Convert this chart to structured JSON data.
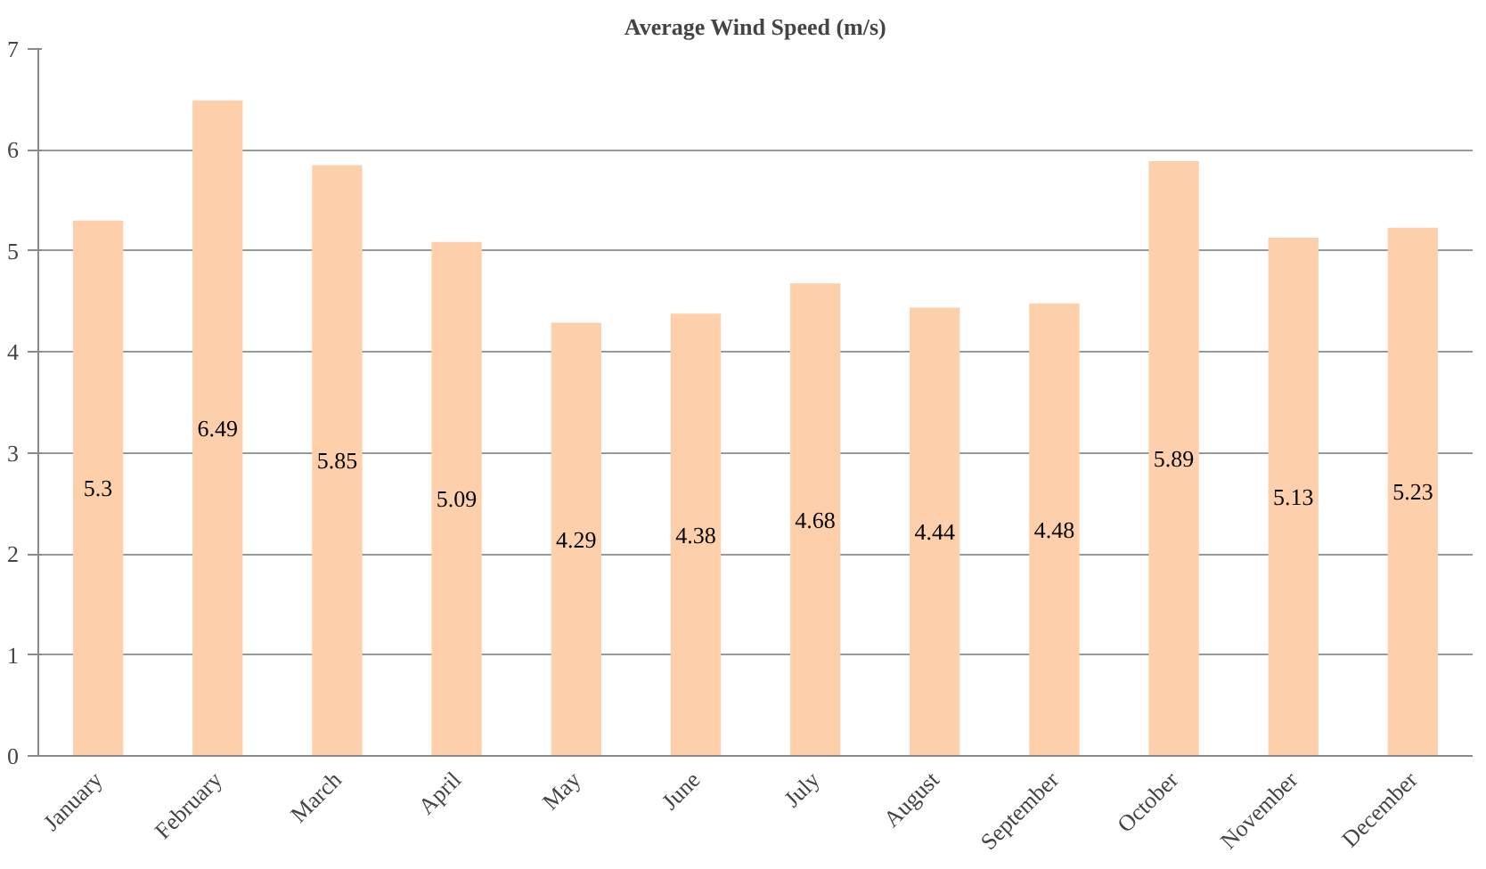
{
  "chart_data": {
    "type": "bar",
    "title": "Average Wind Speed (m/s)",
    "categories": [
      "January",
      "February",
      "March",
      "April",
      "May",
      "June",
      "July",
      "August",
      "September",
      "October",
      "November",
      "December"
    ],
    "values": [
      5.3,
      6.49,
      5.85,
      5.09,
      4.29,
      4.38,
      4.68,
      4.44,
      4.48,
      5.89,
      5.13,
      5.23
    ],
    "color": "#fdd0ab",
    "ylim": [
      0,
      7
    ],
    "yticks": [
      0,
      1,
      2,
      3,
      4,
      5,
      6,
      7
    ],
    "grid": "y",
    "data_labels": true
  }
}
